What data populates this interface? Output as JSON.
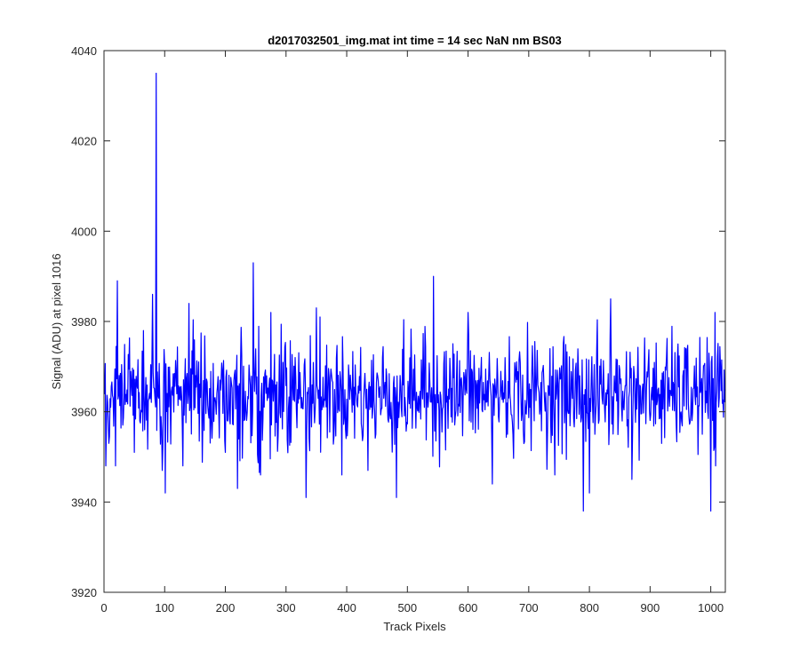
{
  "chart_data": {
    "type": "line",
    "title": "d2017032501_img.mat int time = 14 sec  NaN nm BS03",
    "xlabel": "Track Pixels",
    "ylabel": "Signal (ADU) at pixel 1016",
    "xlim": [
      0,
      1024
    ],
    "ylim": [
      3920,
      4040
    ],
    "xticks": [
      0,
      100,
      200,
      300,
      400,
      500,
      600,
      700,
      800,
      900,
      1000
    ],
    "yticks": [
      3920,
      3940,
      3960,
      3980,
      4000,
      4020,
      4040
    ],
    "xtick_labels": [
      "0",
      "100",
      "200",
      "300",
      "400",
      "500",
      "600",
      "700",
      "800",
      "900",
      "1000"
    ],
    "ytick_labels": [
      "3920",
      "3940",
      "3960",
      "3980",
      "4000",
      "4020",
      "4040"
    ],
    "grid": false,
    "legend": null,
    "series_color": "#0000ff",
    "series": [
      {
        "x_start": 1,
        "x_step": 1,
        "y_mean": 3964,
        "y_noise_std": 6,
        "highlighted_points": [
          {
            "x": 3,
            "y": 3948
          },
          {
            "x": 8,
            "y": 3953
          },
          {
            "x": 19,
            "y": 3948
          },
          {
            "x": 22,
            "y": 3989
          },
          {
            "x": 50,
            "y": 3951
          },
          {
            "x": 65,
            "y": 3978
          },
          {
            "x": 80,
            "y": 3986
          },
          {
            "x": 86,
            "y": 4035
          },
          {
            "x": 96,
            "y": 3947
          },
          {
            "x": 101,
            "y": 3942
          },
          {
            "x": 130,
            "y": 3948
          },
          {
            "x": 140,
            "y": 3984
          },
          {
            "x": 220,
            "y": 3943
          },
          {
            "x": 246,
            "y": 3993
          },
          {
            "x": 333,
            "y": 3941
          },
          {
            "x": 350,
            "y": 3983
          },
          {
            "x": 435,
            "y": 3947
          },
          {
            "x": 482,
            "y": 3941
          },
          {
            "x": 543,
            "y": 3990
          },
          {
            "x": 600,
            "y": 3982
          },
          {
            "x": 640,
            "y": 3944
          },
          {
            "x": 790,
            "y": 3938
          },
          {
            "x": 800,
            "y": 3942
          },
          {
            "x": 835,
            "y": 3985
          },
          {
            "x": 870,
            "y": 3945
          },
          {
            "x": 1000,
            "y": 3938
          },
          {
            "x": 1008,
            "y": 3948
          }
        ]
      }
    ]
  }
}
